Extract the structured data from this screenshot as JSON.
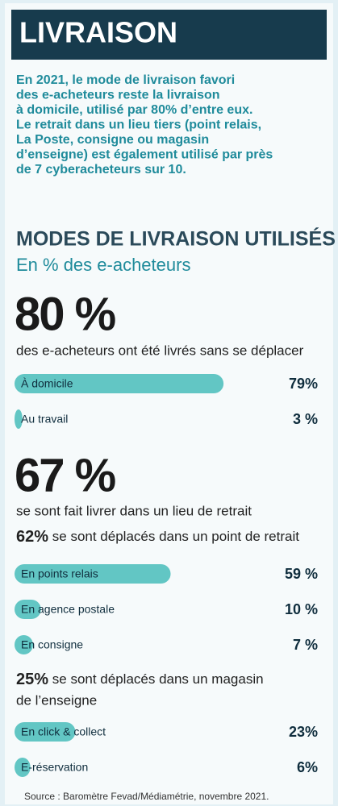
{
  "header": {
    "title": "LIVRAISON"
  },
  "intro": [
    "En 2021, le mode de livraison favori",
    "des e-acheteurs reste la livraison",
    "à domicile, utilisé par 80% d’entre eux.",
    "Le retrait dans un lieu tiers (point relais,",
    "La Poste, consigne ou magasin",
    "d’enseigne) est également utilisé par près",
    "de 7 cyberacheteurs sur 10."
  ],
  "groups": [
    {
      "headline": "80 %",
      "caption": "des e-acheteurs ont été livrés sans se déplacer"
    },
    {
      "headline": "67 %",
      "caption": "se sont fait livrer dans un lieu de retrait",
      "subgroups": [
        {
          "share": "62%",
          "caption": [
            "se sont déplacés dans un point de retrait"
          ]
        },
        {
          "share": "25%",
          "caption": [
            "se sont déplacés dans un magasin",
            "de l’enseigne"
          ]
        }
      ]
    }
  ],
  "chart_data": {
    "type": "bar",
    "title": "MODES DE LIVRAISON UTILISÉS",
    "subtitle": "En % des e-acheteurs",
    "categories": [
      "À domicile",
      "Au travail",
      "En points relais",
      "En agence postale",
      "En consigne",
      "En click & collect",
      "E-réservation"
    ],
    "values": [
      79,
      3,
      59,
      10,
      7,
      23,
      6
    ],
    "value_labels": [
      "79%",
      "3 %",
      "59 %",
      "10 %",
      "7 %",
      "23%",
      "6%"
    ],
    "xlim": [
      0,
      100
    ],
    "color": "#62c6c4"
  },
  "source": "Source : Baromètre Fevad/Médiamétrie, novembre 2021."
}
